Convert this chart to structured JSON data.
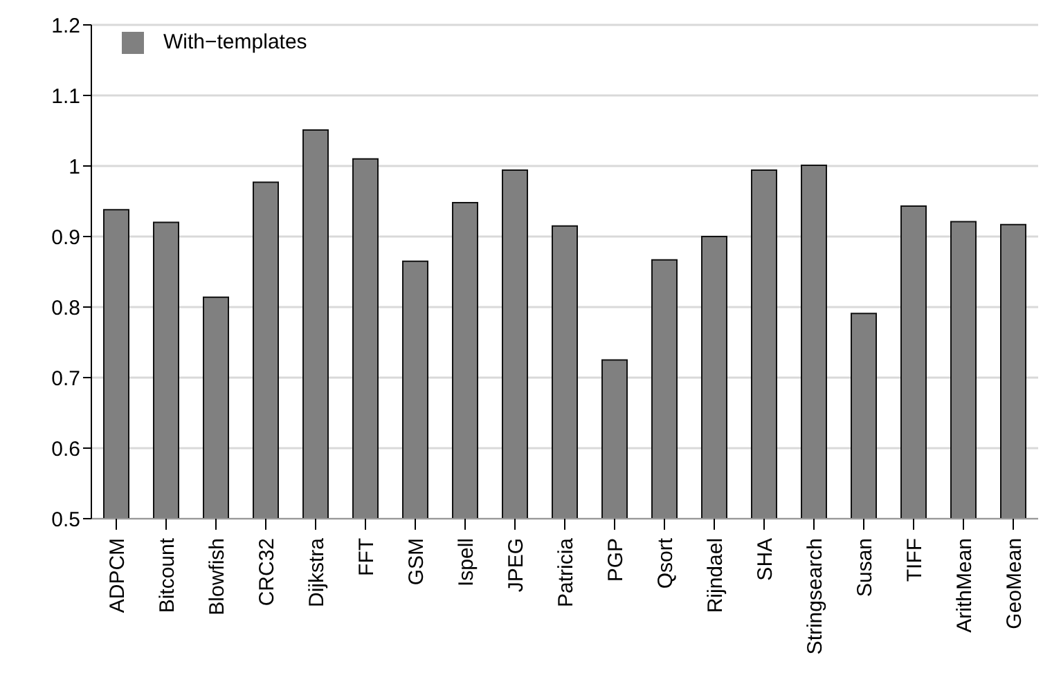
{
  "chart_data": {
    "type": "bar",
    "categories": [
      "ADPCM",
      "Bitcount",
      "Blowfish",
      "CRC32",
      "Dijkstra",
      "FFT",
      "GSM",
      "Ispell",
      "JPEG",
      "Patricia",
      "PGP",
      "Qsort",
      "Rijndael",
      "SHA",
      "Stringsearch",
      "Susan",
      "TIFF",
      "ArithMean",
      "GeoMean"
    ],
    "series": [
      {
        "name": "With−templates",
        "color": "#808080",
        "values": [
          0.938,
          0.92,
          0.814,
          0.977,
          1.051,
          1.01,
          0.865,
          0.948,
          0.994,
          0.915,
          0.725,
          0.867,
          0.9,
          0.994,
          1.001,
          0.791,
          0.943,
          0.921,
          0.917
        ]
      }
    ],
    "ylim": [
      0.5,
      1.2
    ],
    "yticks": [
      0.5,
      0.6,
      0.7,
      0.8,
      0.9,
      1,
      1.1,
      1.2
    ],
    "grid": "y",
    "legend": "top left"
  }
}
